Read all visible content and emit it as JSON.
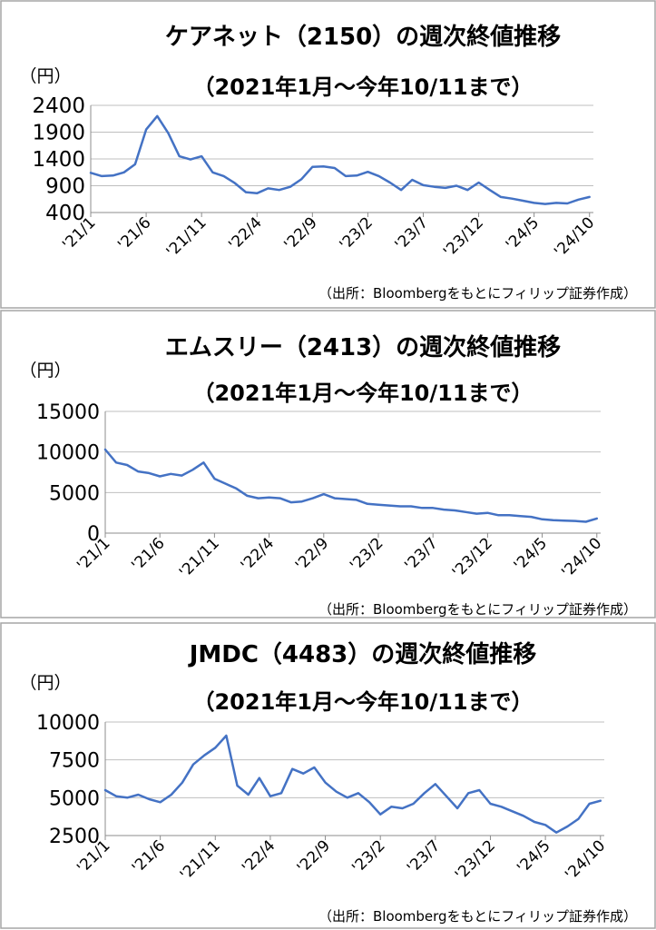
{
  "chart_data": [
    {
      "type": "line",
      "title": "ケアネット（2150）の週次終値推移",
      "subtitle": "（2021年1月～今年10/11まで）",
      "ylabel": "（円）",
      "xlabel": "",
      "source": "（出所：Bloombergをもとにフィリップ証券作成）",
      "ylim": [
        400,
        2400
      ],
      "yticks": [
        400,
        900,
        1400,
        1900,
        2400
      ],
      "xtick_labels": [
        "'21/1",
        "'21/6",
        "'21/11",
        "'22/4",
        "'22/9",
        "'23/2",
        "'23/7",
        "'23/12",
        "'24/5",
        "'24/10"
      ],
      "grid": true,
      "legend": "none",
      "color": "#4472c4",
      "series": [
        {
          "x": [
            "2021-01",
            "2021-02",
            "2021-03",
            "2021-04",
            "2021-05",
            "2021-06",
            "2021-07",
            "2021-08",
            "2021-09",
            "2021-10",
            "2021-11",
            "2021-12",
            "2022-01",
            "2022-02",
            "2022-03",
            "2022-04",
            "2022-05",
            "2022-06",
            "2022-07",
            "2022-08",
            "2022-09",
            "2022-10",
            "2022-11",
            "2022-12",
            "2023-01",
            "2023-02",
            "2023-03",
            "2023-04",
            "2023-05",
            "2023-06",
            "2023-07",
            "2023-08",
            "2023-09",
            "2023-10",
            "2023-11",
            "2023-12",
            "2024-01",
            "2024-02",
            "2024-03",
            "2024-04",
            "2024-05",
            "2024-06",
            "2024-07",
            "2024-08",
            "2024-09",
            "2024-10"
          ],
          "values": [
            1140,
            1080,
            1090,
            1150,
            1300,
            1950,
            2200,
            1880,
            1450,
            1390,
            1450,
            1150,
            1080,
            950,
            780,
            760,
            850,
            820,
            880,
            1020,
            1250,
            1260,
            1230,
            1080,
            1090,
            1160,
            1080,
            960,
            820,
            1010,
            910,
            880,
            860,
            900,
            820,
            960,
            820,
            690,
            660,
            620,
            580,
            560,
            580,
            570,
            640,
            690
          ]
        }
      ]
    },
    {
      "type": "line",
      "title": "エムスリー（2413）の週次終値推移",
      "subtitle": "（2021年1月～今年10/11まで）",
      "ylabel": "（円）",
      "xlabel": "",
      "source": "（出所：Bloombergをもとにフィリップ証券作成）",
      "ylim": [
        0,
        15000
      ],
      "yticks": [
        0,
        5000,
        10000,
        15000
      ],
      "xtick_labels": [
        "'21/1",
        "'21/6",
        "'21/11",
        "'22/4",
        "'22/9",
        "'23/2",
        "'23/7",
        "'23/12",
        "'24/5",
        "'24/10"
      ],
      "grid": true,
      "legend": "none",
      "color": "#4472c4",
      "series": [
        {
          "x": [
            "2021-01",
            "2021-02",
            "2021-03",
            "2021-04",
            "2021-05",
            "2021-06",
            "2021-07",
            "2021-08",
            "2021-09",
            "2021-10",
            "2021-11",
            "2021-12",
            "2022-01",
            "2022-02",
            "2022-03",
            "2022-04",
            "2022-05",
            "2022-06",
            "2022-07",
            "2022-08",
            "2022-09",
            "2022-10",
            "2022-11",
            "2022-12",
            "2023-01",
            "2023-02",
            "2023-03",
            "2023-04",
            "2023-05",
            "2023-06",
            "2023-07",
            "2023-08",
            "2023-09",
            "2023-10",
            "2023-11",
            "2023-12",
            "2024-01",
            "2024-02",
            "2024-03",
            "2024-04",
            "2024-05",
            "2024-06",
            "2024-07",
            "2024-08",
            "2024-09",
            "2024-10"
          ],
          "values": [
            10300,
            8700,
            8400,
            7600,
            7400,
            7000,
            7300,
            7100,
            7800,
            8700,
            6700,
            6100,
            5500,
            4600,
            4300,
            4400,
            4300,
            3800,
            3900,
            4300,
            4800,
            4300,
            4200,
            4100,
            3600,
            3500,
            3400,
            3300,
            3300,
            3100,
            3100,
            2900,
            2800,
            2600,
            2400,
            2500,
            2200,
            2200,
            2100,
            2000,
            1700,
            1600,
            1550,
            1500,
            1400,
            1800
          ]
        }
      ]
    },
    {
      "type": "line",
      "title": "JMDC（4483）の週次終値推移",
      "subtitle": "（2021年1月～今年10/11まで）",
      "ylabel": "（円）",
      "xlabel": "",
      "source": "（出所：Bloombergをもとにフィリップ証券作成）",
      "ylim": [
        2500,
        10000
      ],
      "yticks": [
        2500,
        5000,
        7500,
        10000
      ],
      "xtick_labels": [
        "'21/1",
        "'21/6",
        "'21/11",
        "'22/4",
        "'22/9",
        "'23/2",
        "'23/7",
        "'23/12",
        "'24/5",
        "'24/10"
      ],
      "grid": true,
      "legend": "none",
      "color": "#4472c4",
      "series": [
        {
          "x": [
            "2021-01",
            "2021-02",
            "2021-03",
            "2021-04",
            "2021-05",
            "2021-06",
            "2021-07",
            "2021-08",
            "2021-09",
            "2021-10",
            "2021-11",
            "2021-12",
            "2022-01",
            "2022-02",
            "2022-03",
            "2022-04",
            "2022-05",
            "2022-06",
            "2022-07",
            "2022-08",
            "2022-09",
            "2022-10",
            "2022-11",
            "2022-12",
            "2023-01",
            "2023-02",
            "2023-03",
            "2023-04",
            "2023-05",
            "2023-06",
            "2023-07",
            "2023-08",
            "2023-09",
            "2023-10",
            "2023-11",
            "2023-12",
            "2024-01",
            "2024-02",
            "2024-03",
            "2024-04",
            "2024-05",
            "2024-06",
            "2024-07",
            "2024-08",
            "2024-09",
            "2024-10"
          ],
          "values": [
            5500,
            5100,
            5000,
            5200,
            4900,
            4700,
            5200,
            6000,
            7200,
            7800,
            8300,
            9100,
            5800,
            5200,
            6300,
            5100,
            5300,
            6900,
            6600,
            7000,
            6000,
            5400,
            5000,
            5300,
            4700,
            3900,
            4400,
            4300,
            4600,
            5300,
            5900,
            5100,
            4300,
            5300,
            5500,
            4600,
            4400,
            4100,
            3800,
            3400,
            3200,
            2700,
            3100,
            3600,
            4600,
            4800
          ]
        }
      ]
    }
  ]
}
